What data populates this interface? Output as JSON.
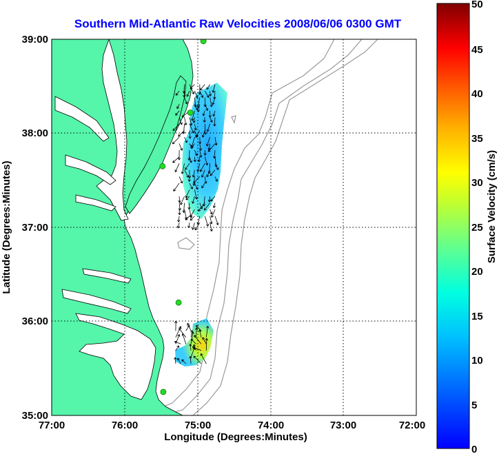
{
  "title": "Southern Mid-Atlantic Raw Velocities 2008/06/06 0300 GMT",
  "x_axis": {
    "label": "Longitude (Degrees:Minutes)",
    "ticks": [
      "77:00",
      "76:00",
      "75:00",
      "74:00",
      "73:00",
      "72:00"
    ]
  },
  "y_axis": {
    "label": "Latitude (Degrees:Minutes)",
    "ticks": [
      "39:00",
      "38:00",
      "37:00",
      "36:00",
      "35:00"
    ]
  },
  "colorbar": {
    "label": "Surface Velocity (cm/s)",
    "ticks": [
      "50",
      "45",
      "40",
      "35",
      "30",
      "25",
      "20",
      "15",
      "10",
      "5",
      "0"
    ],
    "colormap": "jet"
  },
  "colors": {
    "land": "#55f5aa",
    "coast_line": "#000000",
    "bathymetry_contour": "#999999",
    "station_marker": "#22dd22",
    "grid": "#000000",
    "title": "#0000ff"
  },
  "chart_data": {
    "type": "heatmap",
    "title": "Southern Mid-Atlantic Raw Velocities 2008/06/06 0300 GMT",
    "xlabel": "Longitude (Degrees:Minutes)",
    "ylabel": "Latitude (Degrees:Minutes)",
    "xlim": [
      -77.0,
      -72.0
    ],
    "ylim": [
      35.0,
      39.0
    ],
    "grid": true,
    "colorbar_range": [
      0,
      50
    ],
    "colorbar_label": "Surface Velocity (cm/s)",
    "stations": [
      {
        "lon": -74.92,
        "lat": 38.98
      },
      {
        "lon": -75.1,
        "lat": 38.22
      },
      {
        "lon": -75.48,
        "lat": 37.65
      },
      {
        "lon": -75.26,
        "lat": 36.2
      },
      {
        "lon": -75.47,
        "lat": 35.25
      }
    ],
    "velocity_regions": [
      {
        "lon_range": [
          -75.25,
          -74.75
        ],
        "lat_range": [
          37.05,
          38.55
        ],
        "typical_speed": 8
      },
      {
        "lon_range": [
          -75.3,
          -74.85
        ],
        "lat_range": [
          35.55,
          35.95
        ],
        "typical_speed": 18
      }
    ]
  }
}
